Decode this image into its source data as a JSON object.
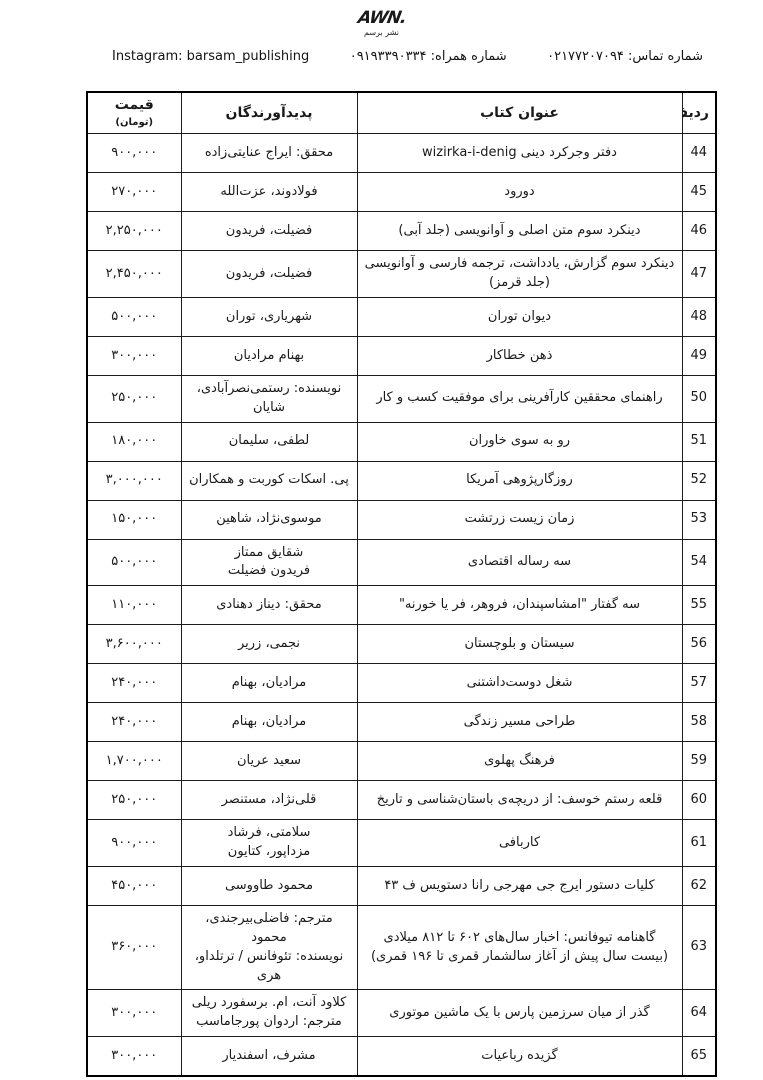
{
  "colors": {
    "background": "#ffffff",
    "text": "#1a1a1a",
    "border": "#000000"
  },
  "header": {
    "logo": {
      "mark": "AWN.",
      "caption": "نشر برسم"
    },
    "contact": {
      "phone": "شماره تماس: ۰۲۱۷۷۲۰۷۰۹۴",
      "mobile": "شماره همراه: ۰۹۱۹۳۳۹۰۳۳۴",
      "instagram": "Instagram: barsam_publishing"
    }
  },
  "table": {
    "headers": {
      "no": "ردیف",
      "title": "عنوان کتاب",
      "creators": "پدیدآورندگان",
      "price_main": "قیمت",
      "price_unit": "(تومان)"
    },
    "rows": [
      {
        "no": "44",
        "title": "دفتر وجرکرد دینی wizirka-i-denig",
        "creators": "محقق: ایراج عنایتی‌زاده",
        "price": "۹۰۰,۰۰۰"
      },
      {
        "no": "45",
        "title": "دورود",
        "creators": "فولادوند، عزت‌الله",
        "price": "۲۷۰,۰۰۰"
      },
      {
        "no": "46",
        "title": "دینکرد سوم متن اصلی و آوانویسی (جلد آبی)",
        "creators": "فضیلت، فریدون",
        "price": "۲,۲۵۰,۰۰۰"
      },
      {
        "no": "47",
        "title": "دینکرد سوم گزارش، یادداشت، ترجمه فارسی و آوانویسی (جلد قرمز)",
        "creators": "فضیلت، فریدون",
        "price": "۲,۴۵۰,۰۰۰"
      },
      {
        "no": "48",
        "title": "دیوان توران",
        "creators": "شهریاری، توران",
        "price": "۵۰۰,۰۰۰"
      },
      {
        "no": "49",
        "title": "ذهن خطاکار",
        "creators": "بهنام مرادیان",
        "price": "۳۰۰,۰۰۰"
      },
      {
        "no": "50",
        "title": "راهنمای محققین کارآفرینی برای موفقیت کسب و کار",
        "creators": "نویسنده: رستمی‌نصرآبادی، شایان",
        "price": "۲۵۰,۰۰۰"
      },
      {
        "no": "51",
        "title": "رو به سوی خاوران",
        "creators": "لطفی، سلیمان",
        "price": "۱۸۰,۰۰۰"
      },
      {
        "no": "52",
        "title": "روزگارپژوهی آمریکا",
        "creators": "پی. اسکات کوربت و همکاران",
        "price": "۳,۰۰۰,۰۰۰"
      },
      {
        "no": "53",
        "title": "زمان زیست زرتشت",
        "creators": "موسوی‌نژاد، شاهین",
        "price": "۱۵۰,۰۰۰"
      },
      {
        "no": "54",
        "title": "سه رساله اقتصادی",
        "creators": "شقایق ممتاز\nفریدون فضیلت",
        "price": "۵۰۰,۰۰۰"
      },
      {
        "no": "55",
        "title": "سه گفتار \"امشاسپندان، فروهر، فر یا خورنه\"",
        "creators": "محقق: دیناز دهنادی",
        "price": "۱۱۰,۰۰۰"
      },
      {
        "no": "56",
        "title": "سیستان و بلوچستان",
        "creators": "نجمی، زریر",
        "price": "۳,۶۰۰,۰۰۰"
      },
      {
        "no": "57",
        "title": "شغل دوست‌داشتنی",
        "creators": "مرادیان، بهنام",
        "price": "۲۴۰,۰۰۰"
      },
      {
        "no": "58",
        "title": "طراحی مسیر زندگی",
        "creators": "مرادیان، بهنام",
        "price": "۲۴۰,۰۰۰"
      },
      {
        "no": "59",
        "title": "فرهنگ پهلوی",
        "creators": "سعید عریان",
        "price": "۱,۷۰۰,۰۰۰"
      },
      {
        "no": "60",
        "title": "قلعه رستم خوسف: از دریچه‌ی باستان‌شناسی و تاریخ",
        "creators": "قلی‌نژاد، مستنصر",
        "price": "۲۵۰,۰۰۰"
      },
      {
        "no": "61",
        "title": "کاربافی",
        "creators": "سلامتی، فرشاد\nمزداپور، کتایون",
        "price": "۹۰۰,۰۰۰"
      },
      {
        "no": "62",
        "title": "کلیات دستور ایرج جی مهرجی رانا دستویس ف ۴۳",
        "creators": "محمود طاووسی",
        "price": "۴۵۰,۰۰۰"
      },
      {
        "no": "63",
        "title": "گاهنامه تیوفانس: اخبار سال‌های ۶۰۲ تا ۸۱۲ میلادی (بیست سال پیش از آغاز سالشمار قمری تا ۱۹۶ قمری)",
        "creators": "مترجم: فاضلی‌بیرجندی، محمود\nنویسنده: تئوفانس / ترتلداو، هری",
        "price": "۳۶۰,۰۰۰"
      },
      {
        "no": "64",
        "title": "گذر از میان سرزمین پارس با یک ماشین موتوری",
        "creators": "کلاود آنت، ام. برسفورد ریلی\nمترجم: اردوان پورجاماسب",
        "price": "۳۰۰,۰۰۰"
      },
      {
        "no": "65",
        "title": "گزیده رباعیات",
        "creators": "مشرف، اسفندیار",
        "price": "۳۰۰,۰۰۰"
      }
    ]
  }
}
